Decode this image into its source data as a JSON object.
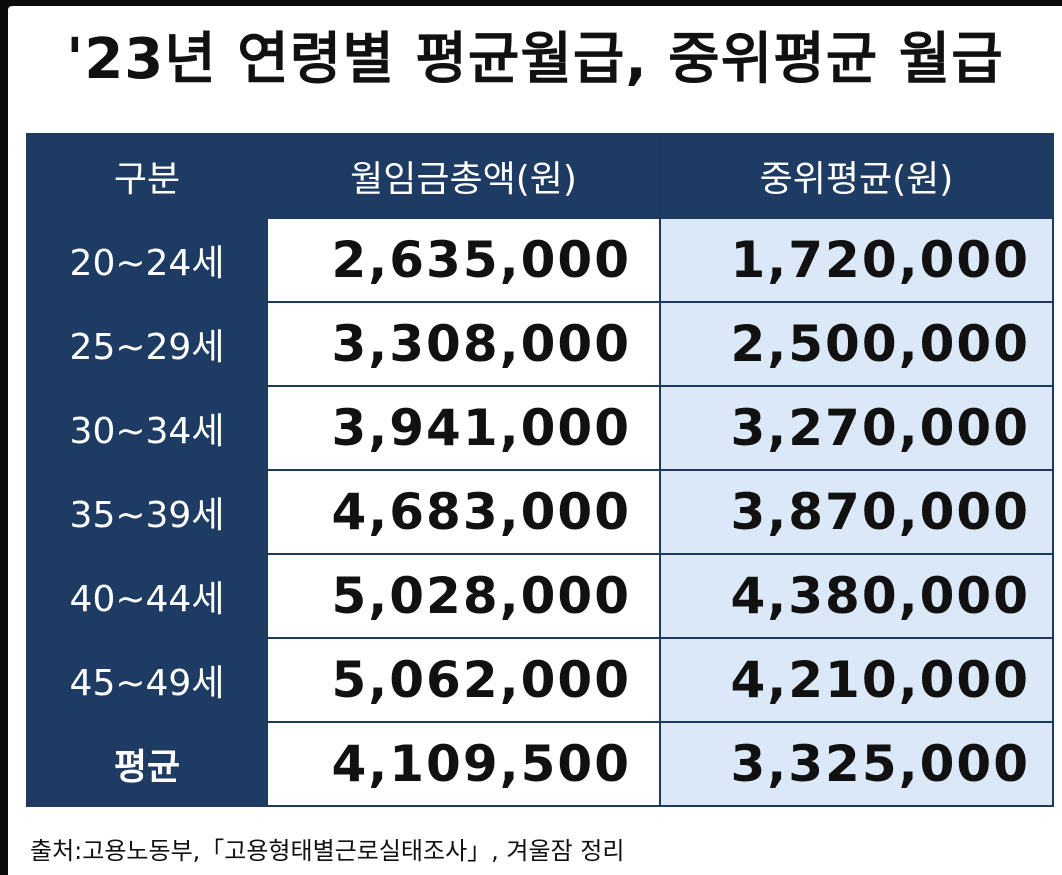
{
  "title": "'23년 연령별 평균월급, 중위평균 월급",
  "table": {
    "headers": [
      "구분",
      "월임금총액(원)",
      "중위평균(원)"
    ],
    "rows": [
      {
        "age": "20~24세",
        "total": "2,635,000",
        "median": "1,720,000"
      },
      {
        "age": "25~29세",
        "total": "3,308,000",
        "median": "2,500,000"
      },
      {
        "age": "30~34세",
        "total": "3,941,000",
        "median": "3,270,000"
      },
      {
        "age": "35~39세",
        "total": "4,683,000",
        "median": "3,870,000"
      },
      {
        "age": "40~44세",
        "total": "5,028,000",
        "median": "4,380,000"
      },
      {
        "age": "45~49세",
        "total": "5,062,000",
        "median": "4,210,000"
      },
      {
        "age": "평균",
        "total": "4,109,500",
        "median": "3,325,000"
      }
    ]
  },
  "source": "출처:고용노동부,「고용형태별근로실태조사」, 겨울잠 정리",
  "colors": {
    "header_bg": "#1d3b63",
    "median_bg": "#dbe8f7",
    "text": "#111111"
  }
}
